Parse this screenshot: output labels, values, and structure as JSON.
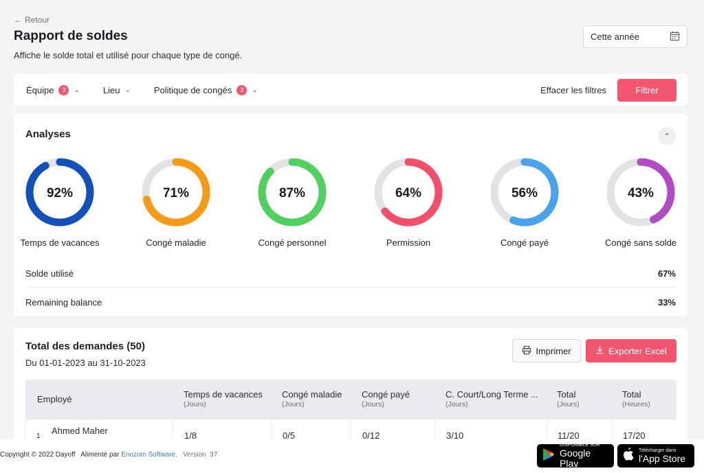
{
  "header": {
    "back_label": "Retour",
    "title": "Rapport de soldes",
    "subtitle": "Affiche le solde total et utilisé pour chaque type de congé.",
    "date_select": "Cette année"
  },
  "filters": {
    "team": {
      "label": "Équipe",
      "count": "3"
    },
    "location": {
      "label": "Lieu"
    },
    "policy": {
      "label": "Politique de congés",
      "count": "3"
    },
    "clear_label": "Effacer les filtres",
    "apply_label": "Filtrer"
  },
  "analytics": {
    "title": "Analyses",
    "donuts": [
      {
        "label": "Temps de vacances",
        "percent": "92%",
        "value": 92,
        "color": "#1350b8"
      },
      {
        "label": "Congé maladie",
        "percent": "71%",
        "value": 71,
        "color": "#f59a16"
      },
      {
        "label": "Congé personnel",
        "percent": "87%",
        "value": 87,
        "color": "#4fd05f"
      },
      {
        "label": "Permission",
        "percent": "64%",
        "value": 64,
        "color": "#f24f68"
      },
      {
        "label": "Congé payé",
        "percent": "56%",
        "value": 56,
        "color": "#4aa3ea"
      },
      {
        "label": "Congé sans solde",
        "percent": "43%",
        "value": 43,
        "color": "#b04bc4"
      }
    ],
    "used_label": "Solde utilisé",
    "used_value": "67%",
    "remaining_label": "Remaining balance",
    "remaining_value": "33%"
  },
  "requests": {
    "title": "Total des demandes (50)",
    "range": "Du 01-01-2023 au 31-10-2023",
    "print_label": "Imprimer",
    "export_label": "Exporter Excel",
    "columns": [
      {
        "label": "Employé",
        "sub": ""
      },
      {
        "label": "Temps de vacances",
        "sub": "(Jours)"
      },
      {
        "label": "Congé maladie",
        "sub": "(Jours)"
      },
      {
        "label": "Congé payé",
        "sub": "(Jours)"
      },
      {
        "label": "C. Court/Long Terme ...",
        "sub": "(Jours)"
      },
      {
        "label": "Total",
        "sub": "(Jours)"
      },
      {
        "label": "Total",
        "sub": "(Heures)"
      }
    ],
    "rows": [
      {
        "index": "1",
        "name": "Ahmed Maher",
        "vacation": "1/8",
        "sick": "0/5",
        "paid": "0/12",
        "term": "3/10",
        "total_days": "11/20",
        "total_hours": "17/20"
      }
    ]
  },
  "footer": {
    "copyright": "Copyright © 2022 Dayoff",
    "powered": "Alimenté par",
    "vendor": "Enozom Software.",
    "version_label": "Version",
    "version": "37",
    "google_small": "DISPONIBLE SUR",
    "google_big": "Google Play",
    "apple_small": "Télécharger dans",
    "apple_big": "l'App Store"
  }
}
